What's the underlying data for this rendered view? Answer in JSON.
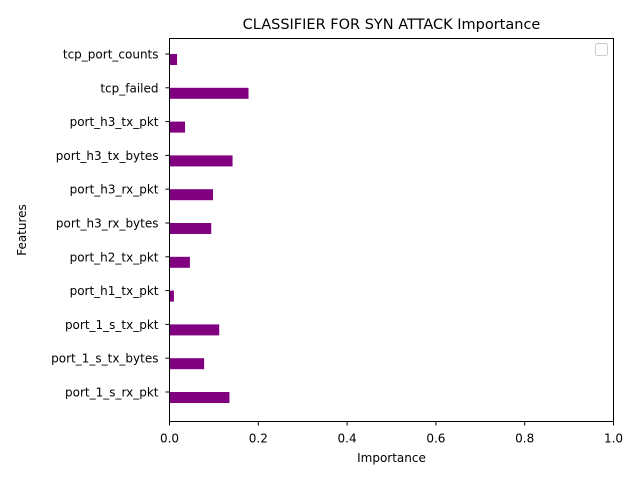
{
  "chart_data": {
    "type": "bar",
    "orientation": "horizontal",
    "title": "CLASSIFIER FOR SYN ATTACK Importance",
    "xlabel": "Importance",
    "ylabel": "Features",
    "xlim": [
      0,
      1.0
    ],
    "xticks": [
      "0.0",
      "0.2",
      "0.4",
      "0.6",
      "0.8",
      "1.0"
    ],
    "categories": [
      "port_1_s_rx_pkt",
      "port_1_s_tx_bytes",
      "port_1_s_tx_pkt",
      "port_h1_tx_pkt",
      "port_h2_tx_pkt",
      "port_h3_rx_bytes",
      "port_h3_rx_pkt",
      "port_h3_tx_bytes",
      "port_h3_tx_pkt",
      "tcp_failed",
      "tcp_port_counts"
    ],
    "values": [
      0.135,
      0.078,
      0.112,
      0.01,
      0.046,
      0.094,
      0.098,
      0.142,
      0.035,
      0.178,
      0.017
    ],
    "bar_color": "#800080",
    "grid": false,
    "legend": "top-right (empty)"
  }
}
